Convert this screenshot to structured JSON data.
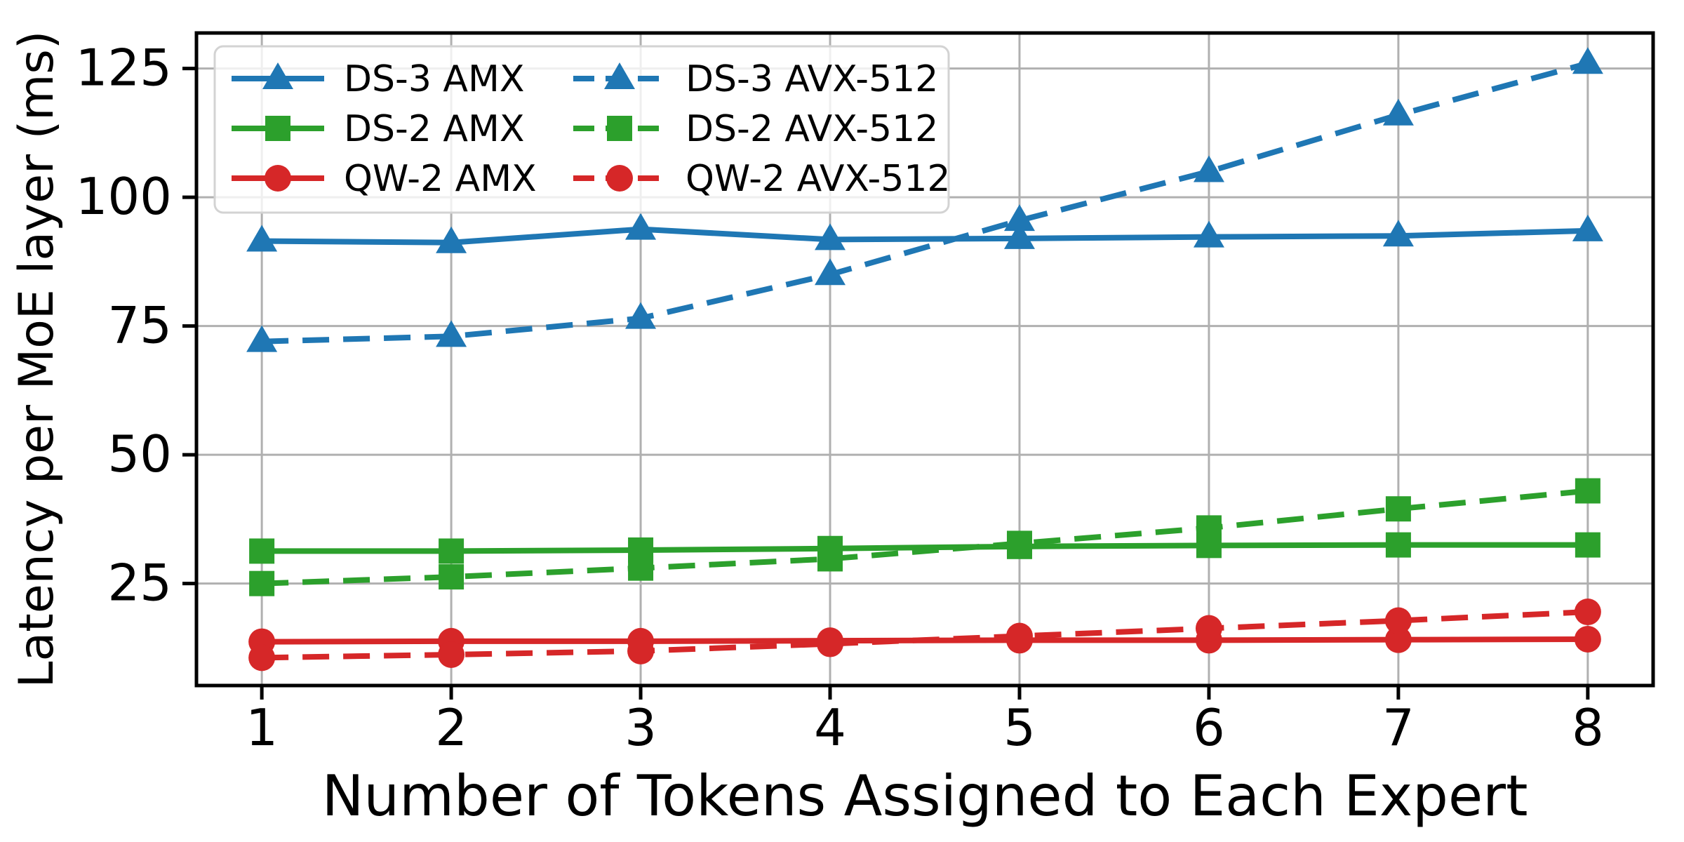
{
  "chart_data": {
    "type": "line",
    "x": [
      1,
      2,
      3,
      4,
      5,
      6,
      7,
      8
    ],
    "series": [
      {
        "name": "DS-3 AMX",
        "color": "#1f77b4",
        "dash": "solid",
        "marker": "triangle",
        "values": [
          91.5,
          91.2,
          93.8,
          91.8,
          92.0,
          92.3,
          92.5,
          93.5
        ]
      },
      {
        "name": "DS-2 AMX",
        "color": "#2ca02c",
        "dash": "solid",
        "marker": "square",
        "values": [
          31.3,
          31.3,
          31.5,
          31.8,
          32.2,
          32.4,
          32.5,
          32.5
        ]
      },
      {
        "name": "QW-2 AMX",
        "color": "#d62728",
        "dash": "solid",
        "marker": "circle",
        "values": [
          13.7,
          13.8,
          13.8,
          13.9,
          14.0,
          14.0,
          14.1,
          14.2
        ]
      },
      {
        "name": "DS-3 AVX-512",
        "color": "#1f77b4",
        "dash": "dashed",
        "marker": "triangle",
        "values": [
          72.0,
          73.0,
          76.5,
          85.0,
          95.5,
          105.0,
          116.0,
          126.0
        ]
      },
      {
        "name": "DS-2 AVX-512",
        "color": "#2ca02c",
        "dash": "dashed",
        "marker": "square",
        "values": [
          25.0,
          26.3,
          28.0,
          29.8,
          32.8,
          35.8,
          39.5,
          43.0
        ]
      },
      {
        "name": "QW-2 AVX-512",
        "color": "#d62728",
        "dash": "dashed",
        "marker": "circle",
        "values": [
          10.6,
          11.2,
          11.9,
          13.3,
          14.8,
          16.3,
          17.8,
          19.5
        ]
      }
    ],
    "title": "",
    "xlabel": "Number of Tokens Assigned to Each Expert",
    "ylabel": "Latency per MoE layer (ms)",
    "xticks": [
      1,
      2,
      3,
      4,
      5,
      6,
      7,
      8
    ],
    "yticks": [
      25,
      50,
      75,
      100,
      125
    ],
    "xlim": [
      0.655,
      8.345
    ],
    "ylim": [
      5.2,
      131.9
    ],
    "grid": true,
    "grid_color": "#b0b0b0",
    "spine_color": "#000000",
    "legend": {
      "position": "upper left",
      "columns": 2,
      "frame_fill": "rgba(255,255,255,0.8)",
      "frame_edge": "#d3d3d3"
    }
  }
}
